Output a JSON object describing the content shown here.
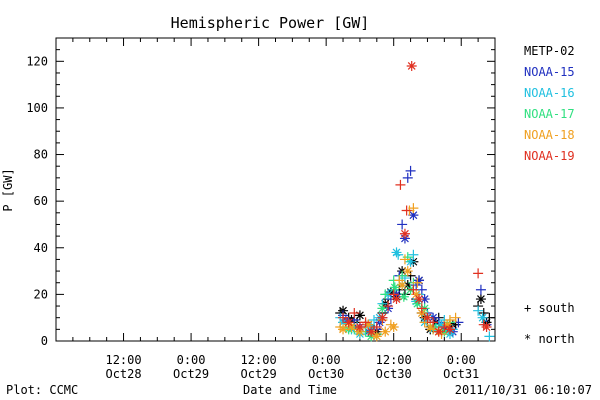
{
  "chart_data": {
    "type": "scatter",
    "title": "Hemispheric Power [GW]",
    "ylabel": "P [GW]",
    "xlabel": "Date and Time",
    "footer_left": "Plot: CCMC",
    "footer_right": "2011/10/31 06:10:07",
    "x_unit": "hours",
    "xlim": [
      0,
      78
    ],
    "ylim": [
      0,
      130
    ],
    "yticks": [
      0,
      20,
      40,
      60,
      80,
      100,
      120
    ],
    "xticks": [
      {
        "x": 12,
        "time": "12:00",
        "day": "Oct28"
      },
      {
        "x": 24,
        "time": "0:00",
        "day": "Oct29"
      },
      {
        "x": 36,
        "time": "12:00",
        "day": "Oct29"
      },
      {
        "x": 48,
        "time": "0:00",
        "day": "Oct30"
      },
      {
        "x": 60,
        "time": "12:00",
        "day": "Oct30"
      },
      {
        "x": 72,
        "time": "0:00",
        "day": "Oct31"
      }
    ],
    "legend_note": {
      "south": "+  south",
      "north": "*  north"
    },
    "series": [
      {
        "name": "METP-02",
        "color": "#000000",
        "south": [
          [
            50.5,
            12
          ],
          [
            52,
            10
          ],
          [
            53.5,
            8
          ],
          [
            55,
            6
          ],
          [
            56.5,
            5
          ],
          [
            58,
            12
          ],
          [
            59,
            18
          ],
          [
            60,
            20
          ],
          [
            61,
            22
          ],
          [
            62,
            20
          ],
          [
            63,
            28
          ],
          [
            64,
            18
          ],
          [
            65,
            12
          ],
          [
            66,
            8
          ],
          [
            67,
            6
          ],
          [
            68,
            10
          ],
          [
            69,
            7
          ],
          [
            70,
            5
          ],
          [
            71,
            7
          ],
          [
            75,
            15
          ],
          [
            76,
            12
          ],
          [
            77,
            10
          ]
        ],
        "north": [
          [
            51,
            13
          ],
          [
            52.5,
            9
          ],
          [
            54,
            11
          ],
          [
            55.5,
            7
          ],
          [
            57,
            4
          ],
          [
            58.5,
            16
          ],
          [
            59.5,
            21
          ],
          [
            60.5,
            19
          ],
          [
            61.5,
            30
          ],
          [
            62.5,
            24
          ],
          [
            63.5,
            34
          ],
          [
            64.5,
            26
          ],
          [
            65.5,
            10
          ],
          [
            66.5,
            5
          ],
          [
            67.5,
            8
          ],
          [
            68.5,
            4
          ],
          [
            69.5,
            6
          ],
          [
            70.5,
            7
          ],
          [
            75.5,
            18
          ],
          [
            76.5,
            8
          ]
        ]
      },
      {
        "name": "NOAA-15",
        "color": "#2030c0",
        "south": [
          [
            51,
            11
          ],
          [
            53,
            9
          ],
          [
            55,
            7
          ],
          [
            57,
            5
          ],
          [
            58,
            10
          ],
          [
            59.5,
            18
          ],
          [
            61,
            28
          ],
          [
            61.5,
            50
          ],
          [
            62.5,
            70
          ],
          [
            63,
            73
          ],
          [
            64,
            24
          ],
          [
            65,
            22
          ],
          [
            66,
            12
          ],
          [
            68,
            8
          ],
          [
            70,
            5
          ],
          [
            71.5,
            8
          ],
          [
            75.5,
            22
          ],
          [
            76.5,
            7
          ]
        ],
        "north": [
          [
            51.5,
            9
          ],
          [
            53.5,
            6
          ],
          [
            55.5,
            4
          ],
          [
            57.5,
            8
          ],
          [
            59,
            14
          ],
          [
            60.5,
            20
          ],
          [
            62,
            44
          ],
          [
            63.5,
            54
          ],
          [
            64.5,
            26
          ],
          [
            65.5,
            18
          ],
          [
            67,
            10
          ],
          [
            69,
            6
          ],
          [
            70.5,
            4
          ]
        ]
      },
      {
        "name": "NOAA-16",
        "color": "#20c0e0",
        "south": [
          [
            50.5,
            10
          ],
          [
            52,
            8
          ],
          [
            53.5,
            6
          ],
          [
            55,
            4
          ],
          [
            56.5,
            9
          ],
          [
            58,
            16
          ],
          [
            60,
            22
          ],
          [
            60.8,
            37
          ],
          [
            62,
            27
          ],
          [
            63.5,
            37
          ],
          [
            64.5,
            20
          ],
          [
            66,
            11
          ],
          [
            67.5,
            6
          ],
          [
            69,
            9
          ],
          [
            70.5,
            5
          ],
          [
            75,
            13
          ],
          [
            77,
            2
          ]
        ],
        "north": [
          [
            51,
            8
          ],
          [
            52.5,
            5
          ],
          [
            54,
            3
          ],
          [
            56,
            6
          ],
          [
            57.5,
            10
          ],
          [
            59,
            20
          ],
          [
            60.5,
            38
          ],
          [
            61.5,
            24
          ],
          [
            63,
            34
          ],
          [
            64,
            17
          ],
          [
            65.5,
            8
          ],
          [
            67,
            5
          ],
          [
            68.5,
            7
          ],
          [
            70,
            3
          ],
          [
            75.8,
            10
          ]
        ]
      },
      {
        "name": "NOAA-17",
        "color": "#30e080",
        "south": [
          [
            51.5,
            6
          ],
          [
            53,
            5
          ],
          [
            55,
            4
          ],
          [
            57,
            3
          ],
          [
            58.5,
            20
          ],
          [
            60,
            26
          ],
          [
            61.5,
            28
          ],
          [
            62.5,
            36
          ],
          [
            63.5,
            25
          ],
          [
            64.5,
            18
          ],
          [
            66,
            10
          ],
          [
            68,
            5
          ],
          [
            70,
            8
          ]
        ],
        "north": [
          [
            52,
            5
          ],
          [
            54,
            4
          ],
          [
            56,
            2
          ],
          [
            58,
            14
          ],
          [
            60.2,
            23
          ],
          [
            61.8,
            19
          ],
          [
            63,
            22
          ],
          [
            64.2,
            16
          ],
          [
            65.5,
            14
          ],
          [
            67,
            6
          ],
          [
            69,
            4
          ]
        ]
      },
      {
        "name": "NOAA-18",
        "color": "#f0a020",
        "south": [
          [
            50.5,
            6
          ],
          [
            52,
            7
          ],
          [
            53.5,
            5
          ],
          [
            55,
            8
          ],
          [
            56.5,
            3
          ],
          [
            58,
            9
          ],
          [
            59.5,
            7
          ],
          [
            61,
            26
          ],
          [
            62,
            35
          ],
          [
            62.8,
            56
          ],
          [
            63.5,
            57
          ],
          [
            64.2,
            25
          ],
          [
            65.5,
            8
          ],
          [
            67,
            5
          ],
          [
            68.5,
            3
          ],
          [
            70,
            9
          ],
          [
            71,
            10
          ]
        ],
        "north": [
          [
            51,
            5
          ],
          [
            52.5,
            6
          ],
          [
            54,
            4
          ],
          [
            55.5,
            7
          ],
          [
            57,
            2
          ],
          [
            58.5,
            4
          ],
          [
            60,
            6
          ],
          [
            61.5,
            24
          ],
          [
            62.5,
            30
          ],
          [
            64,
            20
          ],
          [
            65,
            12
          ],
          [
            66.5,
            6
          ],
          [
            68,
            4
          ],
          [
            69.5,
            7
          ]
        ]
      },
      {
        "name": "NOAA-19",
        "color": "#e03020",
        "south": [
          [
            51,
            10
          ],
          [
            53,
            12
          ],
          [
            55,
            8
          ],
          [
            57,
            6
          ],
          [
            59,
            15
          ],
          [
            60,
            20
          ],
          [
            61.2,
            67
          ],
          [
            62.3,
            56
          ],
          [
            63.5,
            22
          ],
          [
            65,
            14
          ],
          [
            67,
            8
          ],
          [
            69,
            6
          ],
          [
            75,
            29
          ],
          [
            76,
            7
          ]
        ],
        "north": [
          [
            52,
            8
          ],
          [
            54,
            6
          ],
          [
            56,
            4
          ],
          [
            58,
            10
          ],
          [
            60.5,
            18
          ],
          [
            62,
            46
          ],
          [
            63.2,
            118
          ],
          [
            64.5,
            18
          ],
          [
            66,
            10
          ],
          [
            68,
            4
          ],
          [
            70,
            5
          ],
          [
            76.5,
            6
          ]
        ]
      }
    ]
  }
}
